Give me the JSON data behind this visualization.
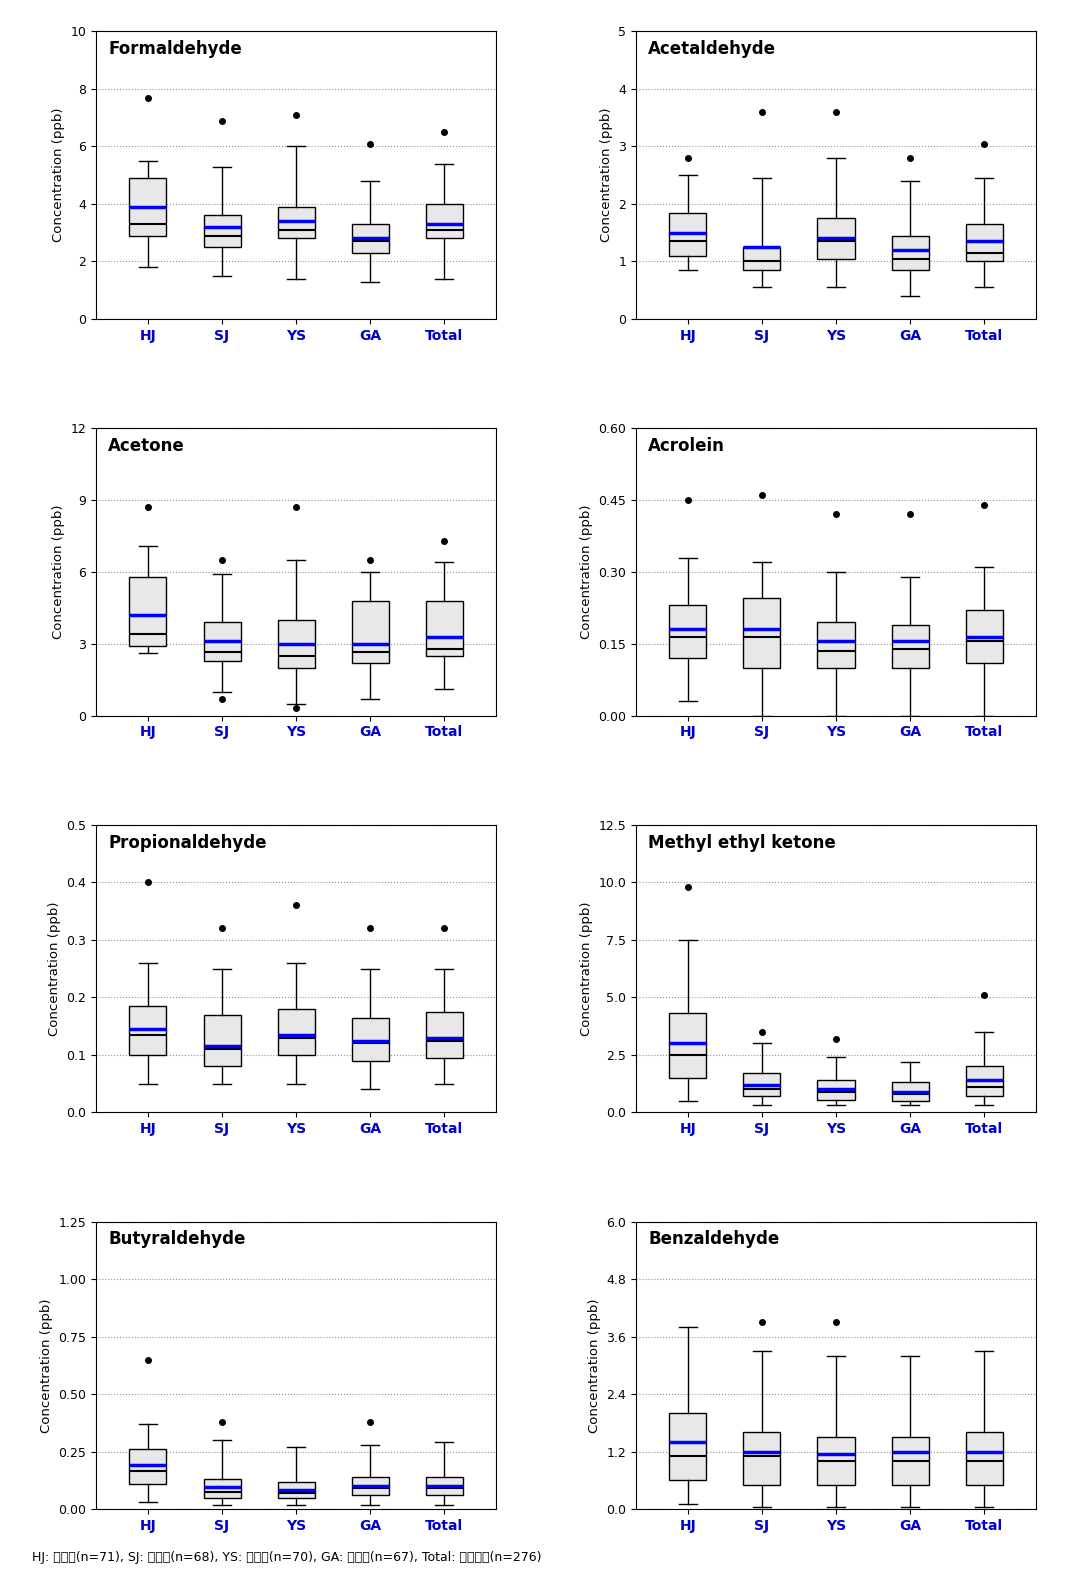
{
  "plots": [
    {
      "title": "Formaldehyde",
      "ylabel": "Concentration (ppb)",
      "ylim": [
        0,
        10
      ],
      "yticks": [
        0,
        2,
        4,
        6,
        8,
        10
      ],
      "boxes": [
        {
          "label": "HJ",
          "whislo": 1.8,
          "q1": 2.9,
          "med": 3.3,
          "q3": 4.9,
          "whishi": 5.5,
          "fliers": [
            7.7
          ]
        },
        {
          "label": "SJ",
          "whislo": 1.5,
          "q1": 2.5,
          "med": 2.9,
          "q3": 3.6,
          "whishi": 5.3,
          "fliers": [
            6.9
          ]
        },
        {
          "label": "YS",
          "whislo": 1.4,
          "q1": 2.8,
          "med": 3.1,
          "q3": 3.9,
          "whishi": 6.0,
          "fliers": [
            7.1
          ]
        },
        {
          "label": "GA",
          "whislo": 1.3,
          "q1": 2.3,
          "med": 2.7,
          "q3": 3.3,
          "whishi": 4.8,
          "fliers": [
            6.1
          ]
        },
        {
          "label": "Total",
          "whislo": 1.4,
          "q1": 2.8,
          "med": 3.1,
          "q3": 4.0,
          "whishi": 5.4,
          "fliers": [
            6.5
          ]
        }
      ],
      "means": [
        3.9,
        3.2,
        3.4,
        2.8,
        3.3
      ]
    },
    {
      "title": "Acetaldehyde",
      "ylabel": "Concentration (ppb)",
      "ylim": [
        0,
        5
      ],
      "yticks": [
        0,
        1,
        2,
        3,
        4,
        5
      ],
      "boxes": [
        {
          "label": "HJ",
          "whislo": 0.85,
          "q1": 1.1,
          "med": 1.35,
          "q3": 1.85,
          "whishi": 2.5,
          "fliers": [
            2.8
          ]
        },
        {
          "label": "SJ",
          "whislo": 0.55,
          "q1": 0.85,
          "med": 1.0,
          "q3": 1.25,
          "whishi": 2.45,
          "fliers": [
            3.6
          ]
        },
        {
          "label": "YS",
          "whislo": 0.55,
          "q1": 1.05,
          "med": 1.35,
          "q3": 1.75,
          "whishi": 2.8,
          "fliers": [
            3.6
          ]
        },
        {
          "label": "GA",
          "whislo": 0.4,
          "q1": 0.85,
          "med": 1.05,
          "q3": 1.45,
          "whishi": 2.4,
          "fliers": [
            2.8
          ]
        },
        {
          "label": "Total",
          "whislo": 0.55,
          "q1": 1.0,
          "med": 1.15,
          "q3": 1.65,
          "whishi": 2.45,
          "fliers": [
            3.05
          ]
        }
      ],
      "means": [
        1.5,
        1.25,
        1.4,
        1.2,
        1.35
      ]
    },
    {
      "title": "Acetone",
      "ylabel": "Concentration (ppb)",
      "ylim": [
        0,
        12
      ],
      "yticks": [
        0,
        3,
        6,
        9,
        12
      ],
      "boxes": [
        {
          "label": "HJ",
          "whislo": 2.6,
          "q1": 2.9,
          "med": 3.4,
          "q3": 5.8,
          "whishi": 7.1,
          "fliers": [
            8.7
          ]
        },
        {
          "label": "SJ",
          "whislo": 1.0,
          "q1": 2.3,
          "med": 2.65,
          "q3": 3.9,
          "whishi": 5.9,
          "fliers": [
            6.5,
            0.7
          ]
        },
        {
          "label": "YS",
          "whislo": 0.5,
          "q1": 2.0,
          "med": 2.5,
          "q3": 4.0,
          "whishi": 6.5,
          "fliers": [
            8.7,
            0.3
          ]
        },
        {
          "label": "GA",
          "whislo": 0.7,
          "q1": 2.2,
          "med": 2.65,
          "q3": 4.8,
          "whishi": 6.0,
          "fliers": [
            6.5
          ]
        },
        {
          "label": "Total",
          "whislo": 1.1,
          "q1": 2.5,
          "med": 2.8,
          "q3": 4.8,
          "whishi": 6.4,
          "fliers": [
            7.3
          ]
        }
      ],
      "means": [
        4.2,
        3.1,
        3.0,
        3.0,
        3.3
      ]
    },
    {
      "title": "Acrolein",
      "ylabel": "Concentration (ppb)",
      "ylim": [
        0.0,
        0.6
      ],
      "yticks": [
        0.0,
        0.15,
        0.3,
        0.45,
        0.6
      ],
      "boxes": [
        {
          "label": "HJ",
          "whislo": 0.03,
          "q1": 0.12,
          "med": 0.165,
          "q3": 0.23,
          "whishi": 0.33,
          "fliers": [
            0.45
          ]
        },
        {
          "label": "SJ",
          "whislo": 0.0,
          "q1": 0.1,
          "med": 0.165,
          "q3": 0.245,
          "whishi": 0.32,
          "fliers": [
            0.46
          ]
        },
        {
          "label": "YS",
          "whislo": 0.0,
          "q1": 0.1,
          "med": 0.135,
          "q3": 0.195,
          "whishi": 0.3,
          "fliers": [
            0.42
          ]
        },
        {
          "label": "GA",
          "whislo": 0.0,
          "q1": 0.1,
          "med": 0.14,
          "q3": 0.19,
          "whishi": 0.29,
          "fliers": [
            0.42
          ]
        },
        {
          "label": "Total",
          "whislo": 0.0,
          "q1": 0.11,
          "med": 0.155,
          "q3": 0.22,
          "whishi": 0.31,
          "fliers": [
            0.44
          ]
        }
      ],
      "means": [
        0.18,
        0.18,
        0.155,
        0.155,
        0.165
      ]
    },
    {
      "title": "Propionaldehyde",
      "ylabel": "Concentration (ppb)",
      "ylim": [
        0.0,
        0.5
      ],
      "yticks": [
        0.0,
        0.1,
        0.2,
        0.3,
        0.4,
        0.5
      ],
      "boxes": [
        {
          "label": "HJ",
          "whislo": 0.05,
          "q1": 0.1,
          "med": 0.135,
          "q3": 0.185,
          "whishi": 0.26,
          "fliers": [
            0.4
          ]
        },
        {
          "label": "SJ",
          "whislo": 0.05,
          "q1": 0.08,
          "med": 0.11,
          "q3": 0.17,
          "whishi": 0.25,
          "fliers": [
            0.32
          ]
        },
        {
          "label": "YS",
          "whislo": 0.05,
          "q1": 0.1,
          "med": 0.13,
          "q3": 0.18,
          "whishi": 0.26,
          "fliers": [
            0.36
          ]
        },
        {
          "label": "GA",
          "whislo": 0.04,
          "q1": 0.09,
          "med": 0.12,
          "q3": 0.165,
          "whishi": 0.25,
          "fliers": [
            0.32
          ]
        },
        {
          "label": "Total",
          "whislo": 0.05,
          "q1": 0.095,
          "med": 0.125,
          "q3": 0.175,
          "whishi": 0.25,
          "fliers": [
            0.32
          ]
        }
      ],
      "means": [
        0.145,
        0.115,
        0.135,
        0.125,
        0.13
      ]
    },
    {
      "title": "Methyl ethyl ketone",
      "ylabel": "Concentration (ppb)",
      "ylim": [
        0.0,
        12.5
      ],
      "yticks": [
        0.0,
        2.5,
        5.0,
        7.5,
        10.0,
        12.5
      ],
      "boxes": [
        {
          "label": "HJ",
          "whislo": 0.5,
          "q1": 1.5,
          "med": 2.5,
          "q3": 4.3,
          "whishi": 7.5,
          "fliers": [
            9.8
          ]
        },
        {
          "label": "SJ",
          "whislo": 0.3,
          "q1": 0.7,
          "med": 1.0,
          "q3": 1.7,
          "whishi": 3.0,
          "fliers": [
            3.5
          ]
        },
        {
          "label": "YS",
          "whislo": 0.3,
          "q1": 0.55,
          "med": 0.9,
          "q3": 1.4,
          "whishi": 2.4,
          "fliers": [
            3.2
          ]
        },
        {
          "label": "GA",
          "whislo": 0.3,
          "q1": 0.5,
          "med": 0.8,
          "q3": 1.3,
          "whishi": 2.2,
          "fliers": []
        },
        {
          "label": "Total",
          "whislo": 0.3,
          "q1": 0.7,
          "med": 1.1,
          "q3": 2.0,
          "whishi": 3.5,
          "fliers": [
            5.1
          ]
        }
      ],
      "means": [
        3.0,
        1.2,
        1.0,
        0.9,
        1.4
      ]
    },
    {
      "title": "Butyraldehyde",
      "ylabel": "Concentration (ppb)",
      "ylim": [
        0.0,
        1.25
      ],
      "yticks": [
        0.0,
        0.25,
        0.5,
        0.75,
        1.0,
        1.25
      ],
      "boxes": [
        {
          "label": "HJ",
          "whislo": 0.03,
          "q1": 0.11,
          "med": 0.165,
          "q3": 0.26,
          "whishi": 0.37,
          "fliers": [
            0.65
          ]
        },
        {
          "label": "SJ",
          "whislo": 0.02,
          "q1": 0.05,
          "med": 0.075,
          "q3": 0.13,
          "whishi": 0.3,
          "fliers": [
            0.38
          ]
        },
        {
          "label": "YS",
          "whislo": 0.02,
          "q1": 0.05,
          "med": 0.07,
          "q3": 0.12,
          "whishi": 0.27,
          "fliers": []
        },
        {
          "label": "GA",
          "whislo": 0.02,
          "q1": 0.06,
          "med": 0.09,
          "q3": 0.14,
          "whishi": 0.28,
          "fliers": [
            0.38
          ]
        },
        {
          "label": "Total",
          "whislo": 0.02,
          "q1": 0.06,
          "med": 0.09,
          "q3": 0.14,
          "whishi": 0.29,
          "fliers": []
        }
      ],
      "means": [
        0.19,
        0.095,
        0.085,
        0.1,
        0.1
      ]
    },
    {
      "title": "Benzaldehyde",
      "ylabel": "Concentration (ppb)",
      "ylim": [
        0.0,
        6.0
      ],
      "yticks": [
        0.0,
        1.2,
        2.4,
        3.6,
        4.8,
        6.0
      ],
      "boxes": [
        {
          "label": "HJ",
          "whislo": 0.1,
          "q1": 0.6,
          "med": 1.1,
          "q3": 2.0,
          "whishi": 3.8,
          "fliers": []
        },
        {
          "label": "SJ",
          "whislo": 0.05,
          "q1": 0.5,
          "med": 1.1,
          "q3": 1.6,
          "whishi": 3.3,
          "fliers": [
            3.9
          ]
        },
        {
          "label": "YS",
          "whislo": 0.05,
          "q1": 0.5,
          "med": 1.0,
          "q3": 1.5,
          "whishi": 3.2,
          "fliers": [
            3.9
          ]
        },
        {
          "label": "GA",
          "whislo": 0.05,
          "q1": 0.5,
          "med": 1.0,
          "q3": 1.5,
          "whishi": 3.2,
          "fliers": []
        },
        {
          "label": "Total",
          "whislo": 0.05,
          "q1": 0.5,
          "med": 1.0,
          "q3": 1.6,
          "whishi": 3.3,
          "fliers": []
        }
      ],
      "means": [
        1.4,
        1.2,
        1.15,
        1.2,
        1.2
      ]
    }
  ],
  "xlabel_color": "#0000CC",
  "box_facecolor": "#E8E8E8",
  "box_edgecolor": "#000000",
  "mean_color": "#0000FF",
  "whisker_color": "#000000",
  "flier_color": "#000000",
  "grid_color": "#888888",
  "background_color": "#FFFFFF",
  "footer": "HJ: 학장동(n=71), SJ: 수정동(n=68), YS: 연산동(n=70), GA: 광안동(n=67), Total: 전체자료(n=276)"
}
